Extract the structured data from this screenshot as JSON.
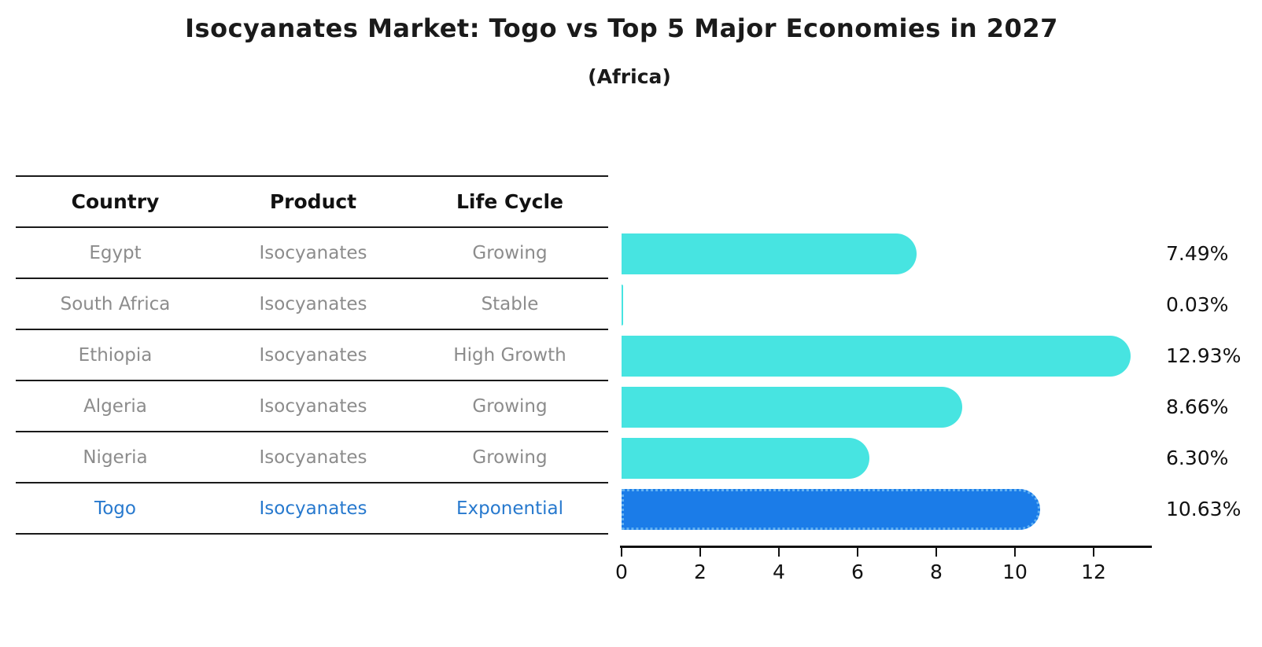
{
  "title": "Isocyanates Market: Togo vs Top 5 Major Economies in 2027",
  "subtitle": "(Africa)",
  "table": {
    "headers": [
      "Country",
      "Product",
      "Life Cycle"
    ],
    "rows": [
      {
        "country": "Egypt",
        "product": "Isocyanates",
        "life_cycle": "Growing",
        "highlight": false
      },
      {
        "country": "South Africa",
        "product": "Isocyanates",
        "life_cycle": "Stable",
        "highlight": false
      },
      {
        "country": "Ethiopia",
        "product": "Isocyanates",
        "life_cycle": "High Growth",
        "highlight": false
      },
      {
        "country": "Algeria",
        "product": "Isocyanates",
        "life_cycle": "Growing",
        "highlight": false
      },
      {
        "country": "Nigeria",
        "product": "Isocyanates",
        "life_cycle": "Growing",
        "highlight": true
      }
    ],
    "togo_row": {
      "country": "Togo",
      "product": "Isocyanates",
      "life_cycle": "Exponential"
    }
  },
  "chart_data": {
    "type": "bar",
    "orientation": "horizontal",
    "title": "Isocyanates Market: Togo vs Top 5 Major Economies in 2027",
    "subtitle": "(Africa)",
    "categories": [
      "Egypt",
      "South Africa",
      "Ethiopia",
      "Algeria",
      "Nigeria",
      "Togo"
    ],
    "values": [
      7.49,
      0.03,
      12.93,
      8.66,
      6.3,
      10.63
    ],
    "value_labels": [
      "7.49%",
      "0.03%",
      "12.93%",
      "8.66%",
      "6.30%",
      "10.63%"
    ],
    "highlight_category": "Togo",
    "highlight_index": 5,
    "x_ticks": [
      0,
      2,
      4,
      6,
      8,
      10,
      12
    ],
    "xlim": [
      0,
      13.5
    ],
    "grid": false,
    "legend": false,
    "bar_color": "#47e4e1",
    "highlight_bar_color": "#1b7ce8",
    "highlight_bar_edge_color": "#62b1f2",
    "highlight_text_color": "#2779ce",
    "text_color_muted": "#8c8c8c"
  }
}
